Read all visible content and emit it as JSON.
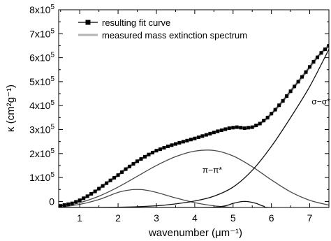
{
  "chart_data": {
    "type": "line",
    "xlabel": "wavenumber (μm⁻¹)",
    "ylabel": "κ (cm²g⁻¹)",
    "xlim": [
      0.45,
      7.5
    ],
    "ylim": [
      -25000,
      800000
    ],
    "x_ticks": [
      1,
      2,
      3,
      4,
      5,
      6,
      7
    ],
    "x_tick_labels": [
      "1",
      "2",
      "3",
      "4",
      "5",
      "6",
      "7"
    ],
    "y_ticks": [
      0,
      100000,
      200000,
      300000,
      400000,
      500000,
      600000,
      700000,
      800000
    ],
    "y_tick_labels": [
      {
        "mant": "0",
        "exp": ""
      },
      {
        "mant": "1x10",
        "exp": "5"
      },
      {
        "mant": "2x10",
        "exp": "5"
      },
      {
        "mant": "3x10",
        "exp": "5"
      },
      {
        "mant": "4x10",
        "exp": "5"
      },
      {
        "mant": "5x10",
        "exp": "5"
      },
      {
        "mant": "6x10",
        "exp": "5"
      },
      {
        "mant": "7x10",
        "exp": "5"
      },
      {
        "mant": "8x10",
        "exp": "5"
      }
    ],
    "legend": {
      "position": "top-left",
      "entries": [
        "resulting fit curve",
        "measured mass extinction spectrum"
      ]
    },
    "annotations": [
      {
        "text": "π−π*",
        "x": 4.2,
        "y": 120000
      },
      {
        "text": "σ−σ*",
        "x": 7.05,
        "y": 405000
      }
    ],
    "colors": {
      "fit": "#000000",
      "measured": "#b4b4b4",
      "components": "#4a4a4a",
      "sigma": "#111111"
    },
    "series": [
      {
        "name": "measured mass extinction spectrum",
        "x": [
          0.45,
          0.8,
          1.0,
          1.2,
          1.4,
          1.6,
          1.8,
          2.0,
          2.2,
          2.5,
          2.8,
          3.0,
          3.3,
          3.6,
          4.0,
          4.3,
          4.6,
          4.9,
          5.1,
          5.3,
          5.5,
          5.7,
          5.9,
          6.1,
          6.3,
          6.5,
          6.7,
          6.9,
          7.1,
          7.3,
          7.5
        ],
        "y": [
          -20000,
          -8000,
          5000,
          22000,
          42000,
          65000,
          88000,
          110000,
          135000,
          168000,
          196000,
          212000,
          230000,
          245000,
          263000,
          278000,
          293000,
          306000,
          310000,
          306000,
          310000,
          325000,
          350000,
          383000,
          420000,
          460000,
          500000,
          540000,
          583000,
          620000,
          650000
        ]
      },
      {
        "name": "resulting fit curve",
        "x": [
          0.45,
          0.8,
          1.0,
          1.2,
          1.4,
          1.6,
          1.8,
          2.0,
          2.2,
          2.5,
          2.8,
          3.0,
          3.3,
          3.6,
          4.0,
          4.3,
          4.6,
          4.9,
          5.1,
          5.3,
          5.5,
          5.7,
          5.9,
          6.1,
          6.3,
          6.5,
          6.7,
          6.9,
          7.1,
          7.3,
          7.5
        ],
        "y": [
          -20000,
          -8000,
          5000,
          22000,
          42000,
          65000,
          88000,
          110000,
          135000,
          168000,
          196000,
          212000,
          230000,
          245000,
          263000,
          278000,
          293000,
          306000,
          310000,
          306000,
          310000,
          325000,
          350000,
          383000,
          420000,
          460000,
          500000,
          540000,
          583000,
          620000,
          650000
        ]
      },
      {
        "name": "",
        "x": [
          0.45,
          1.0,
          1.5,
          2.0,
          2.3,
          2.5,
          2.7,
          3.0,
          3.5,
          4.0,
          4.5,
          5.0
        ],
        "y": [
          -25000,
          -12000,
          8000,
          38000,
          48000,
          50000,
          48000,
          38000,
          15000,
          -5000,
          -18000,
          -25000
        ]
      },
      {
        "name": "",
        "x": [
          0.45,
          1.0,
          1.5,
          2.0,
          2.5,
          3.0,
          3.5,
          4.0,
          4.5,
          5.0,
          5.5,
          6.0,
          6.5,
          7.0,
          7.5
        ],
        "y": [
          -25000,
          -5000,
          22000,
          60000,
          105000,
          150000,
          187000,
          210000,
          213000,
          190000,
          145000,
          90000,
          40000,
          5000,
          -15000
        ]
      },
      {
        "name": "",
        "x": [
          0.45,
          2.0,
          3.0,
          3.5,
          4.0,
          4.5,
          5.0,
          5.5,
          6.0,
          6.5,
          7.0,
          7.5
        ],
        "y": [
          -25000,
          -24000,
          -18000,
          -10000,
          2000,
          22000,
          60000,
          130000,
          230000,
          350000,
          480000,
          635000
        ]
      },
      {
        "name": "",
        "x": [
          0.45,
          3.5,
          4.0,
          4.5,
          4.8,
          5.0,
          5.2,
          5.3,
          5.4,
          5.6,
          5.8,
          6.0,
          7.5
        ],
        "y": [
          -25000,
          -25000,
          -25000,
          -24000,
          -18000,
          -8000,
          -1000,
          0,
          -1000,
          -8000,
          -20000,
          -25000,
          -25000
        ]
      }
    ]
  }
}
